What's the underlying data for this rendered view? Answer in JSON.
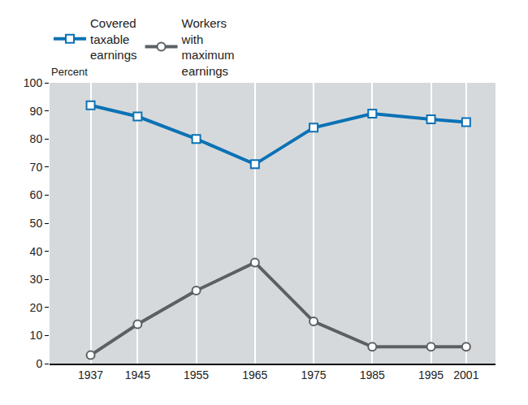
{
  "chart_data": {
    "type": "line",
    "y_label": "Percent",
    "x": [
      1937,
      1945,
      1955,
      1965,
      1975,
      1985,
      1995,
      2001
    ],
    "series": [
      {
        "name": "Covered taxable earnings",
        "color": "#0b72b5",
        "marker": "square-open",
        "values": [
          92,
          88,
          80,
          71,
          84,
          89,
          87,
          86
        ]
      },
      {
        "name": "Workers with maximum earnings",
        "color": "#5b6064",
        "marker": "circle-open",
        "values": [
          3,
          14,
          26,
          36,
          15,
          6,
          6,
          6
        ]
      }
    ],
    "xlim": [
      1930,
      2006
    ],
    "xticks": [
      1937,
      1945,
      1955,
      1965,
      1975,
      1985,
      1995,
      2001
    ],
    "ylim": [
      0,
      100
    ],
    "yticks": [
      0,
      10,
      20,
      30,
      40,
      50,
      60,
      70,
      80,
      90,
      100
    ],
    "grid": true,
    "legend": "top left"
  }
}
